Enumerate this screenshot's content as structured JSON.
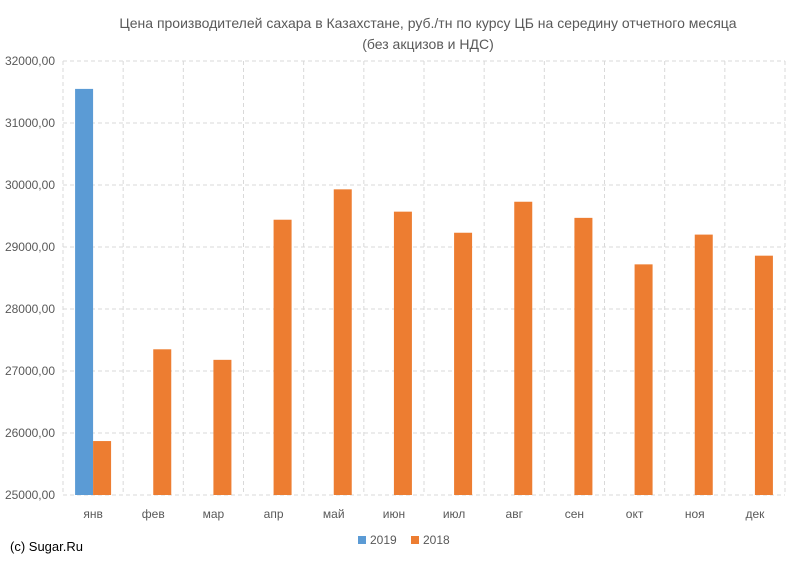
{
  "source_text": "(c) Sugar.Ru",
  "colors": {
    "series_2019": "#5b9bd5",
    "series_2018": "#ed7d31",
    "grid": "#d9d9d9",
    "text": "#595959"
  },
  "chart_data": {
    "type": "bar",
    "title": "Цена производителей сахара в Казахстане, руб./тн по курсу ЦБ на середину отчетного месяца",
    "subtitle": "(без акцизов и НДС)",
    "xlabel": "",
    "ylabel": "",
    "categories": [
      "янв",
      "фев",
      "мар",
      "апр",
      "май",
      "июн",
      "июл",
      "авг",
      "сен",
      "окт",
      "ноя",
      "дек"
    ],
    "ylim": [
      25000,
      32000
    ],
    "yticks": [
      "25000,00",
      "26000,00",
      "27000,00",
      "28000,00",
      "29000,00",
      "30000,00",
      "31000,00",
      "32000,00"
    ],
    "ytick_values": [
      25000,
      26000,
      27000,
      28000,
      29000,
      30000,
      31000,
      32000
    ],
    "grid": true,
    "legend_position": "bottom",
    "series": [
      {
        "name": "2019",
        "color": "#5b9bd5",
        "values": [
          31550,
          null,
          null,
          null,
          null,
          null,
          null,
          null,
          null,
          null,
          null,
          null
        ]
      },
      {
        "name": "2018",
        "color": "#ed7d31",
        "values": [
          25870,
          27350,
          27180,
          29440,
          29930,
          29570,
          29230,
          29730,
          29470,
          28720,
          29200,
          28860
        ]
      }
    ]
  }
}
